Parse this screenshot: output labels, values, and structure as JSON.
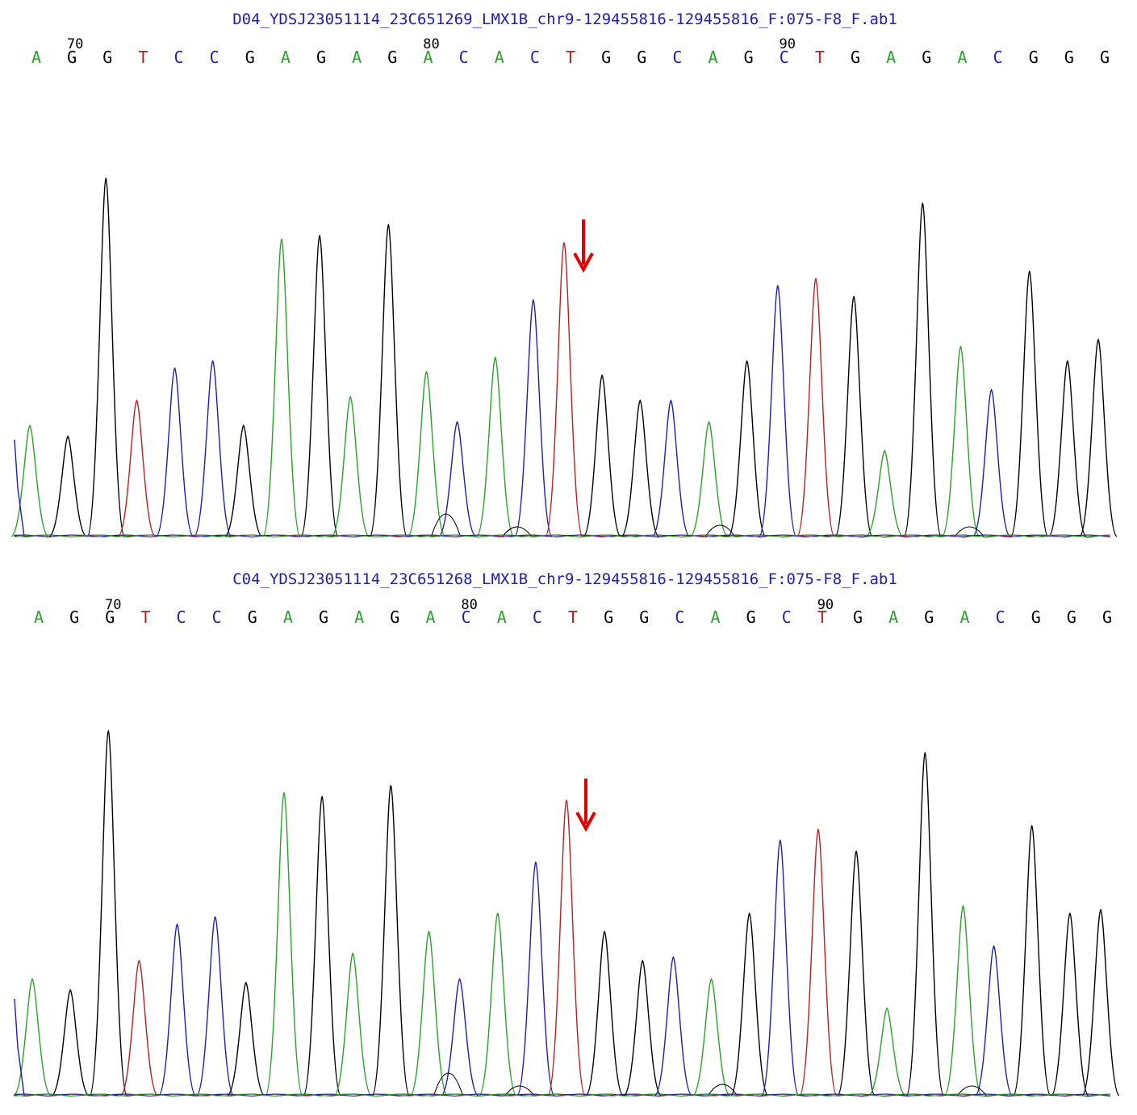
{
  "colors": {
    "A": "#2ca02c",
    "C": "#1f1fa8",
    "G": "#000000",
    "T": "#b22222",
    "title": "#1f1fa8",
    "arrow": "#e00000"
  },
  "chart_data": [
    {
      "type": "line",
      "title": "D04_YDSJ23051114_23C651269_LMX1B_chr9-129455816-129455816_F:075-F8_F.ab1",
      "bases": [
        "A",
        "G",
        "G",
        "T",
        "C",
        "C",
        "G",
        "A",
        "G",
        "A",
        "G",
        "A",
        "C",
        "A",
        "C",
        "T",
        "G",
        "G",
        "C",
        "A",
        "G",
        "C",
        "T",
        "G",
        "A",
        "G",
        "A",
        "C",
        "G",
        "G",
        "G"
      ],
      "position_labels": [
        {
          "label": "70",
          "index": 1
        },
        {
          "label": "80",
          "index": 11
        },
        {
          "label": "90",
          "index": 21
        }
      ],
      "peak_heights": [
        0.31,
        0.28,
        1.0,
        0.38,
        0.47,
        0.49,
        0.31,
        0.83,
        0.84,
        0.39,
        0.87,
        0.46,
        0.32,
        0.5,
        0.66,
        0.82,
        0.45,
        0.38,
        0.38,
        0.32,
        0.49,
        0.7,
        0.72,
        0.67,
        0.24,
        0.93,
        0.53,
        0.41,
        0.74,
        0.49,
        0.55
      ],
      "marker_index": 15
    },
    {
      "type": "line",
      "title": "C04_YDSJ23051114_23C651268_LMX1B_chr9-129455816-129455816_F:075-F8_F.ab1",
      "bases": [
        "A",
        "G",
        "G",
        "T",
        "C",
        "C",
        "G",
        "A",
        "G",
        "A",
        "G",
        "A",
        "C",
        "A",
        "C",
        "T",
        "G",
        "G",
        "C",
        "A",
        "G",
        "C",
        "T",
        "G",
        "A",
        "G",
        "A",
        "C",
        "G",
        "G",
        "G"
      ],
      "position_labels": [
        {
          "label": "70",
          "index": 2
        },
        {
          "label": "80",
          "index": 12
        },
        {
          "label": "90",
          "index": 22
        }
      ],
      "peak_heights": [
        0.32,
        0.29,
        1.0,
        0.37,
        0.47,
        0.49,
        0.31,
        0.83,
        0.82,
        0.39,
        0.85,
        0.45,
        0.32,
        0.5,
        0.64,
        0.81,
        0.45,
        0.37,
        0.38,
        0.32,
        0.5,
        0.7,
        0.73,
        0.67,
        0.24,
        0.94,
        0.52,
        0.41,
        0.74,
        0.5,
        0.51
      ],
      "marker_index": 15
    }
  ]
}
